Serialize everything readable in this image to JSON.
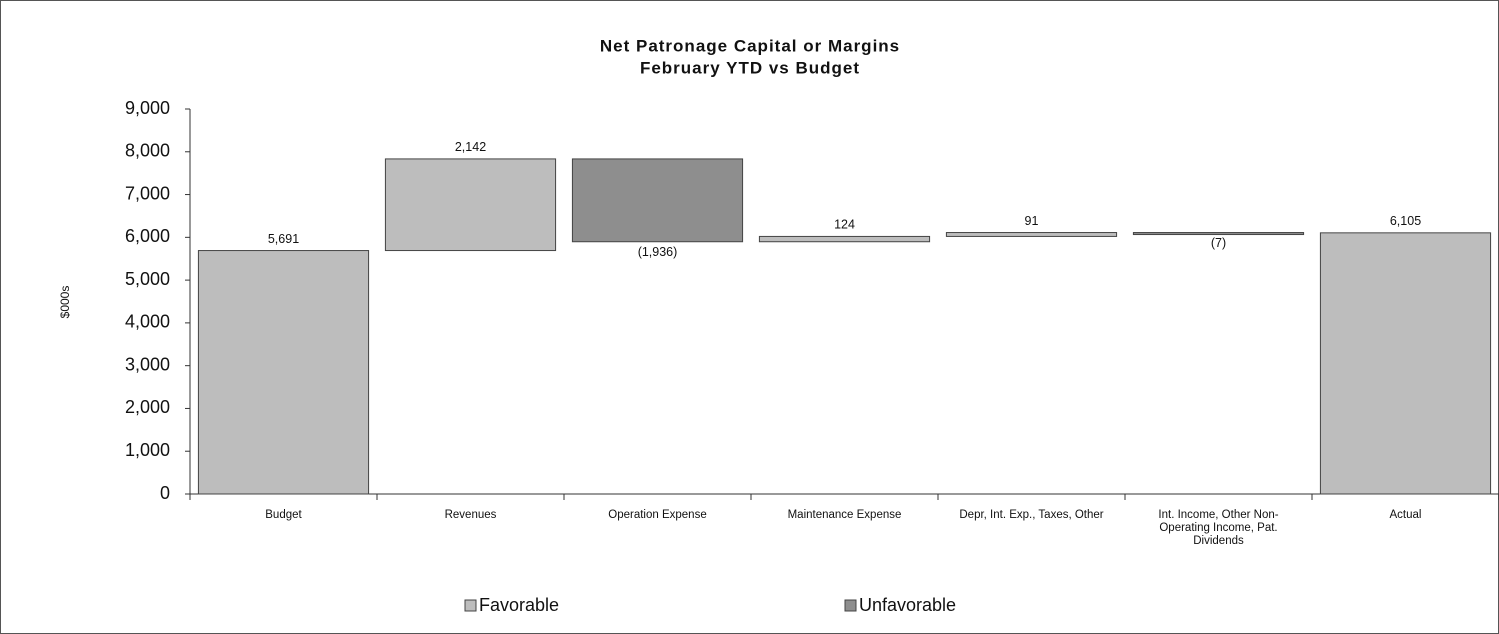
{
  "chart_data": {
    "type": "waterfall",
    "title": "Net Patronage Capital or Margins",
    "subtitle": "February YTD vs Budget",
    "y_label": "$000s",
    "categories": [
      "Budget",
      "Revenues",
      "Operation Expense",
      "Maintenance Expense",
      "Depr, Int. Exp., Taxes, Other",
      "Int. Income, Other Non-Operating Income, Pat. Dividends",
      "Actual"
    ],
    "values": [
      5691,
      2142,
      -1936,
      124,
      91,
      -7,
      6105
    ],
    "value_labels": [
      "5,691",
      "2,142",
      "(1,936)",
      "124",
      "91",
      "(7)",
      "6,105"
    ],
    "legend": [
      {
        "name": "Favorable",
        "color": "#bdbdbd"
      },
      {
        "name": "Unfavorable",
        "color": "#8e8e8e"
      }
    ],
    "ylim": [
      0,
      9000
    ],
    "yticks": [
      0,
      {
        "value": 1000,
        "label": "1,000"
      },
      {
        "value": 2000,
        "label": "2,000"
      },
      {
        "value": 3000,
        "label": "3,000"
      },
      {
        "value": 4000,
        "label": "4,000"
      },
      {
        "value": 5000,
        "label": "5,000"
      },
      {
        "value": 6000,
        "label": "6,000"
      },
      {
        "value": 7000,
        "label": "7,000"
      },
      {
        "value": 8000,
        "label": "8,000"
      },
      {
        "value": 9000,
        "label": "9,000"
      }
    ],
    "grid": false
  }
}
